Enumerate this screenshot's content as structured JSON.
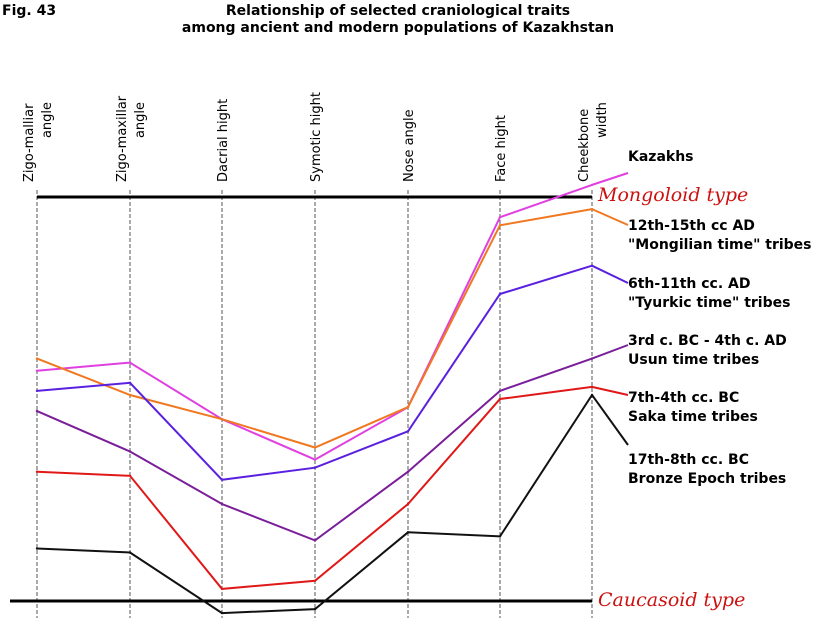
{
  "figure_label": "Fig. 43",
  "title_line1": "Relationship of selected craniological traits",
  "title_line2": "among ancient and modern populations of Kazakhstan",
  "colors": {
    "mongoloid_label": "#cc1111",
    "caucasoid_label": "#cc1111",
    "axis_line": "#000000",
    "grid": "#555555"
  },
  "chart_data": {
    "type": "line",
    "title": "Relationship of selected craniological traits among ancient and modern populations of Kazakhstan",
    "categories": [
      {
        "line1": "Zigo-malliar",
        "line2": "angle"
      },
      {
        "line1": "Zigo-maxillar",
        "line2": "angle"
      },
      {
        "line1": "Dacrial hight",
        "line2": ""
      },
      {
        "line1": "Symotic hight",
        "line2": ""
      },
      {
        "line1": "Nose angle",
        "line2": ""
      },
      {
        "line1": "Face hight",
        "line2": ""
      },
      {
        "line1": "Cheekbone",
        "line2": "width"
      }
    ],
    "scale": {
      "top_label": "Mongoloid type",
      "bottom_label": "Caucasoid type",
      "top_value": 1,
      "bottom_value": 0
    },
    "grid": "vertical dashed lines at each trait",
    "series": [
      {
        "label_line1": "Kazakhs",
        "label_line2": "",
        "color": "#e040e0",
        "values": [
          0.57,
          0.59,
          0.45,
          0.35,
          0.48,
          0.95,
          1.03
        ]
      },
      {
        "label_line1": "12th-15th cc AD",
        "label_line2": "\"Mongilian time\" tribes",
        "color": "#f07820",
        "values": [
          0.6,
          0.51,
          0.45,
          0.38,
          0.48,
          0.93,
          0.97
        ]
      },
      {
        "label_line1": "6th-11th cc. AD",
        "label_line2": "\"Tyurkic time\" tribes",
        "color": "#5a20e0",
        "values": [
          0.52,
          0.54,
          0.3,
          0.33,
          0.42,
          0.76,
          0.83
        ]
      },
      {
        "label_line1": "3rd c. BC - 4th c. AD",
        "label_line2": "Usun time tribes",
        "color": "#7a1e9a",
        "values": [
          0.47,
          0.37,
          0.24,
          0.15,
          0.32,
          0.52,
          0.6
        ]
      },
      {
        "label_line1": "7th-4th cc. BC",
        "label_line2": "Saka time tribes",
        "color": "#e01818",
        "values": [
          0.32,
          0.31,
          0.03,
          0.05,
          0.24,
          0.5,
          0.53
        ]
      },
      {
        "label_line1": "17th-8th cc. BC",
        "label_line2": "Bronze Epoch tribes",
        "color": "#111111",
        "values": [
          0.13,
          0.12,
          -0.03,
          -0.02,
          0.17,
          0.16,
          0.51
        ]
      }
    ]
  }
}
